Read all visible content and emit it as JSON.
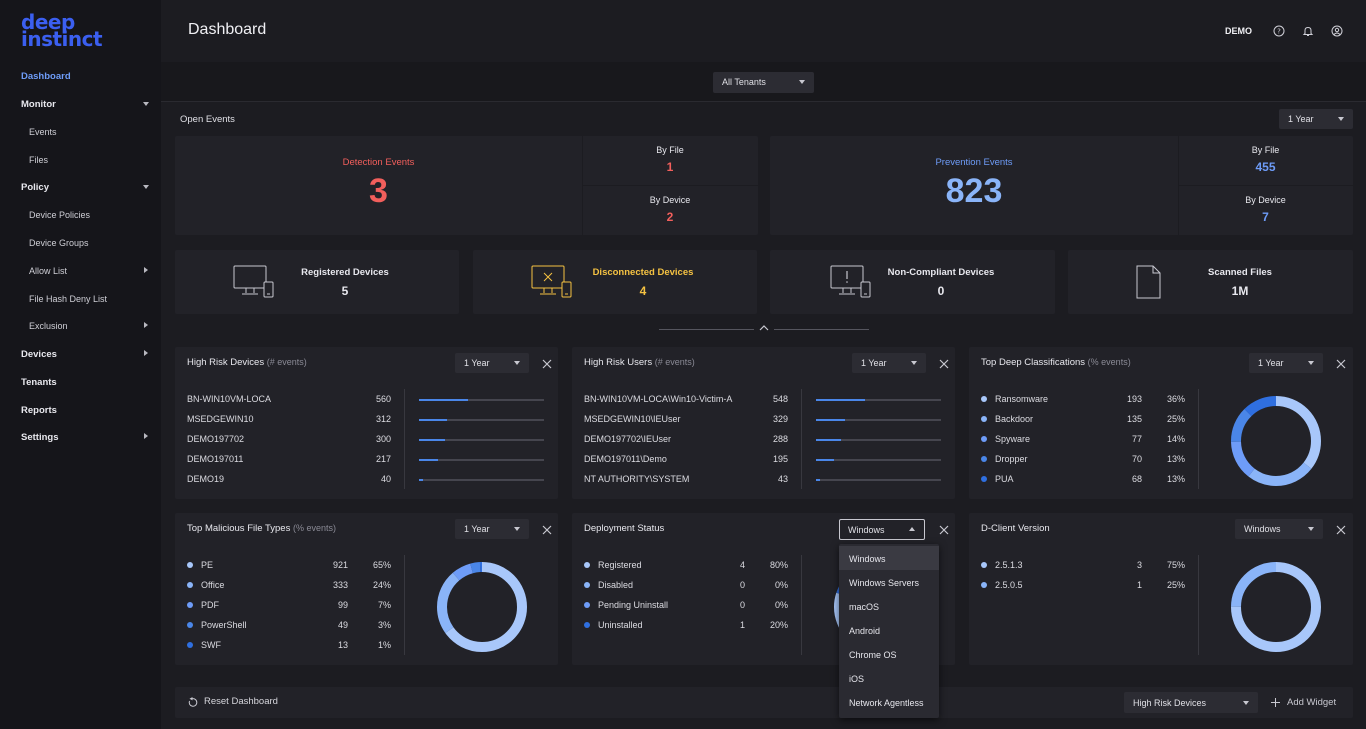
{
  "brand": {
    "line1": "deep",
    "line2": "instinct"
  },
  "sidebar": {
    "items": [
      {
        "label": "Dashboard"
      },
      {
        "label": "Monitor"
      },
      {
        "label": "Events"
      },
      {
        "label": "Files"
      },
      {
        "label": "Policy"
      },
      {
        "label": "Device Policies"
      },
      {
        "label": "Device Groups"
      },
      {
        "label": "Allow List"
      },
      {
        "label": "File Hash Deny List"
      },
      {
        "label": "Exclusion"
      },
      {
        "label": "Devices"
      },
      {
        "label": "Tenants"
      },
      {
        "label": "Reports"
      },
      {
        "label": "Settings"
      }
    ]
  },
  "header": {
    "title": "Dashboard",
    "user": "DEMO",
    "icons": [
      "help-icon",
      "bell-icon",
      "user-icon"
    ]
  },
  "tenant_select": {
    "value": "All Tenants"
  },
  "open_events": {
    "label": "Open Events",
    "period": "1 Year",
    "detection": {
      "label": "Detection Events",
      "value": "3",
      "by_file_label": "By File",
      "by_file": "1",
      "by_device_label": "By Device",
      "by_device": "2"
    },
    "prevention": {
      "label": "Prevention Events",
      "value": "823",
      "by_file_label": "By File",
      "by_file": "455",
      "by_device_label": "By Device",
      "by_device": "7"
    }
  },
  "device_cards": [
    {
      "label": "Registered Devices",
      "value": "5"
    },
    {
      "label": "Disconnected Devices",
      "value": "4"
    },
    {
      "label": "Non-Compliant Devices",
      "value": "0"
    },
    {
      "label": "Scanned Files",
      "value": "1M"
    }
  ],
  "colors": {
    "detection": "#f25f5c",
    "prevention": "#6e9cf8",
    "warning": "#f5c242",
    "accent": "#4a86e8"
  },
  "widgets": {
    "high_risk_devices": {
      "title": "High Risk Devices",
      "hint": "(# events)",
      "period": "1 Year",
      "rows": [
        {
          "name": "BN-WIN10VM-LOCA",
          "value": "560",
          "frac": 0.39
        },
        {
          "name": "MSEDGEWIN10",
          "value": "312",
          "frac": 0.22
        },
        {
          "name": "DEMO197702",
          "value": "300",
          "frac": 0.21
        },
        {
          "name": "DEMO197011",
          "value": "217",
          "frac": 0.15
        },
        {
          "name": "DEMO19",
          "value": "40",
          "frac": 0.03
        }
      ]
    },
    "high_risk_users": {
      "title": "High Risk Users",
      "hint": "(# events)",
      "period": "1 Year",
      "rows": [
        {
          "name": "BN-WIN10VM-LOCA\\Win10-Victim-A",
          "value": "548",
          "frac": 0.39
        },
        {
          "name": "MSEDGEWIN10\\IEUser",
          "value": "329",
          "frac": 0.23
        },
        {
          "name": "DEMO197702\\IEUser",
          "value": "288",
          "frac": 0.2
        },
        {
          "name": "DEMO197011\\Demo",
          "value": "195",
          "frac": 0.14
        },
        {
          "name": "NT AUTHORITY\\SYSTEM",
          "value": "43",
          "frac": 0.03
        }
      ]
    },
    "top_deep_classifications": {
      "title": "Top Deep Classifications",
      "hint": "(% events)",
      "period": "1 Year",
      "rows": [
        {
          "name": "Ransomware",
          "value": "193",
          "pct": "36%",
          "color": "#a8c7fa"
        },
        {
          "name": "Backdoor",
          "value": "135",
          "pct": "25%",
          "color": "#8ab4f8"
        },
        {
          "name": "Spyware",
          "value": "77",
          "pct": "14%",
          "color": "#6e9cf8"
        },
        {
          "name": "Dropper",
          "value": "70",
          "pct": "13%",
          "color": "#4a86e8"
        },
        {
          "name": "PUA",
          "value": "68",
          "pct": "13%",
          "color": "#2f6fe0"
        }
      ]
    },
    "top_malicious_file_types": {
      "title": "Top Malicious File Types",
      "hint": "(% events)",
      "period": "1 Year",
      "rows": [
        {
          "name": "PE",
          "value": "921",
          "pct": "65%",
          "color": "#a8c7fa"
        },
        {
          "name": "Office",
          "value": "333",
          "pct": "24%",
          "color": "#8ab4f8"
        },
        {
          "name": "PDF",
          "value": "99",
          "pct": "7%",
          "color": "#6e9cf8"
        },
        {
          "name": "PowerShell",
          "value": "49",
          "pct": "3%",
          "color": "#4a86e8"
        },
        {
          "name": "SWF",
          "value": "13",
          "pct": "1%",
          "color": "#2f6fe0"
        }
      ]
    },
    "deployment_status": {
      "title": "Deployment Status",
      "platform": "Windows",
      "rows": [
        {
          "name": "Registered",
          "value": "4",
          "pct": "80%",
          "color": "#a8c7fa"
        },
        {
          "name": "Disabled",
          "value": "0",
          "pct": "0%",
          "color": "#8ab4f8"
        },
        {
          "name": "Pending Uninstall",
          "value": "0",
          "pct": "0%",
          "color": "#6e9cf8"
        },
        {
          "name": "Uninstalled",
          "value": "1",
          "pct": "20%",
          "color": "#2f6fe0"
        }
      ],
      "menu_options": [
        "Windows",
        "Windows Servers",
        "macOS",
        "Android",
        "Chrome OS",
        "iOS",
        "Network Agentless"
      ]
    },
    "d_client_version": {
      "title": "D-Client Version",
      "platform": "Windows",
      "rows": [
        {
          "name": "2.5.1.3",
          "value": "3",
          "pct": "75%",
          "color": "#a8c7fa"
        },
        {
          "name": "2.5.0.5",
          "value": "1",
          "pct": "25%",
          "color": "#8ab4f8"
        }
      ]
    }
  },
  "bottom": {
    "reset_label": "Reset Dashboard",
    "widget_select": "High Risk Devices",
    "add_widget_label": "Add Widget"
  }
}
